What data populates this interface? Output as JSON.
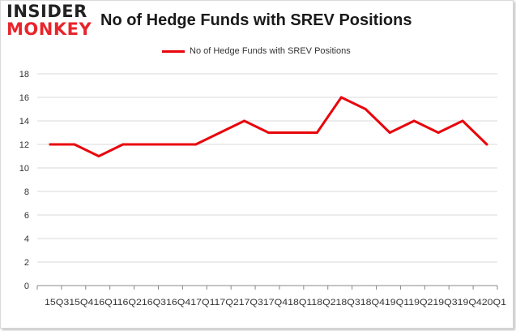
{
  "logo": {
    "line1": "INSIDER",
    "line2": "MONKEY"
  },
  "colors": {
    "series": "#e8060c",
    "grid": "#d9d9d9",
    "axis": "#888888"
  },
  "chart_data": {
    "type": "line",
    "title": "No of Hedge Funds with SREV Positions",
    "xlabel": "",
    "ylabel": "",
    "ylim": [
      0,
      18
    ],
    "yticks": [
      0,
      2,
      4,
      6,
      8,
      10,
      12,
      14,
      16,
      18
    ],
    "grid": true,
    "legend_position": "top-center",
    "x_tick_text": "15Q315Q416Q116Q216Q316Q417Q117Q217Q317Q418Q118Q218Q318Q419Q119Q219Q319Q420Q1",
    "categories": [
      "15Q3",
      "15Q4",
      "16Q1",
      "16Q2",
      "16Q3",
      "16Q4",
      "17Q1",
      "17Q2",
      "17Q3",
      "17Q4",
      "18Q1",
      "18Q2",
      "18Q3",
      "18Q4",
      "19Q1",
      "19Q2",
      "19Q3",
      "19Q4",
      "20Q1"
    ],
    "series": [
      {
        "name": "No of Hedge Funds with SREV  Positions",
        "color": "#e8060c",
        "values": [
          12,
          12,
          11,
          12,
          12,
          12,
          12,
          13,
          14,
          13,
          13,
          13,
          16,
          15,
          13,
          14,
          13,
          14,
          12
        ]
      }
    ]
  }
}
